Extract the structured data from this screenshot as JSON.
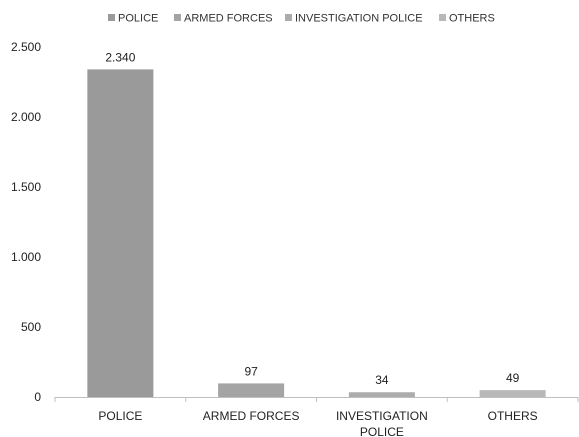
{
  "chart_data": {
    "type": "bar",
    "categories": [
      "POLICE",
      "ARMED FORCES",
      "INVESTIGATION POLICE",
      "OTHERS"
    ],
    "category_labels": [
      [
        "POLICE"
      ],
      [
        "ARMED FORCES"
      ],
      [
        "INVESTIGATION",
        "POLICE"
      ],
      [
        "OTHERS"
      ]
    ],
    "values": [
      2340,
      97,
      34,
      49
    ],
    "value_labels": [
      "2.340",
      "97",
      "34",
      "49"
    ],
    "colors": [
      "#9a9a9a",
      "#a4a4a4",
      "#acacac",
      "#b8b8b8"
    ],
    "legend": {
      "position": "top-center",
      "entries": [
        "POLICE",
        "ARMED FORCES",
        "INVESTIGATION POLICE",
        "OTHERS"
      ]
    },
    "ylim": [
      0,
      2500
    ],
    "yticks": [
      0,
      500,
      1000,
      1500,
      2000,
      2500
    ],
    "ytick_labels": [
      "0",
      "500",
      "1.000",
      "1.500",
      "2.000",
      "2.500"
    ],
    "grid": false,
    "title": "",
    "xlabel": "",
    "ylabel": ""
  }
}
